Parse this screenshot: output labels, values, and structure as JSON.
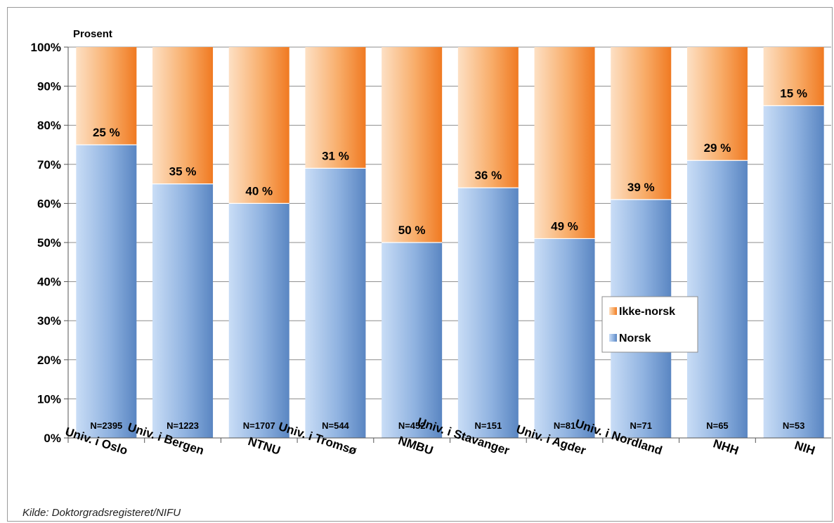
{
  "chart_data": {
    "type": "bar",
    "stacked": true,
    "percent": true,
    "ylabel": "Prosent",
    "ylim": [
      0,
      100
    ],
    "yticks": [
      "0%",
      "10%",
      "20%",
      "30%",
      "40%",
      "50%",
      "60%",
      "70%",
      "80%",
      "90%",
      "100%"
    ],
    "grid": true,
    "legend_position": "right",
    "categories": [
      "Univ. i Oslo",
      "Univ. i Bergen",
      "NTNU",
      "Univ. i Tromsø",
      "NMBU",
      "Univ. i Stavanger",
      "Univ. i Agder",
      "Univ. i Nordland",
      "NHH",
      "NIH"
    ],
    "n_labels": [
      "N=2395",
      "N=1223",
      "N=1707",
      "N=544",
      "N=452",
      "N=151",
      "N=81",
      "N=71",
      "N=65",
      "N=53"
    ],
    "series": [
      {
        "name": "Norsk",
        "color": "#7fa5d6",
        "values": [
          75,
          65,
          60,
          69,
          50,
          64,
          51,
          61,
          71,
          85
        ]
      },
      {
        "name": "Ikke-norsk",
        "color": "#f7a45a",
        "values": [
          25,
          35,
          40,
          31,
          50,
          36,
          49,
          39,
          29,
          15
        ],
        "labels": [
          "25 %",
          "35 %",
          "40 %",
          "31 %",
          "50 %",
          "36 %",
          "49 %",
          "39 %",
          "29 %",
          "15 %"
        ]
      }
    ]
  },
  "source": "Kilde:  Doktorgradsregisteret/NIFU"
}
